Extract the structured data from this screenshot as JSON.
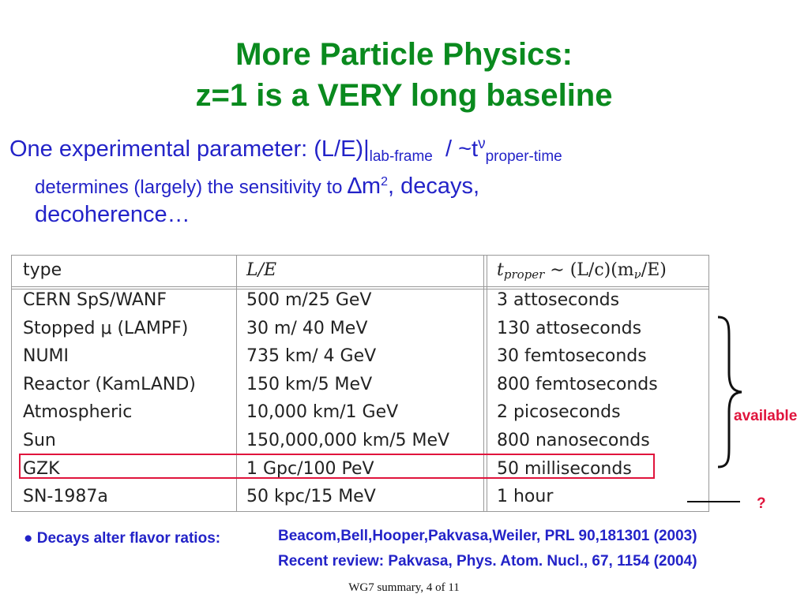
{
  "title": {
    "line1": "More Particle Physics:",
    "line2": "z=1 is a VERY long baseline"
  },
  "param": {
    "lead": "One experimental parameter: (L/E)|",
    "sub_lab": "lab-frame",
    "slash": "/ ~t",
    "sup_nu": "ν",
    "sub_proper": "proper-time",
    "line2_a": "determines (largely) the sensitivity to ",
    "delta": "∆",
    "m": "m",
    "sup2": "2",
    "line2_b": ", decays,",
    "line3": "decoherence…"
  },
  "table": {
    "headers": {
      "type": "type",
      "le": "L/E",
      "t_prefix": "t",
      "t_sub": "proper",
      "t_rest": " ∼ (L/c)(m",
      "t_nu": "ν",
      "t_end": "/E)"
    },
    "rows": [
      {
        "type": "CERN SpS/WANF",
        "le": "500 m/25 GeV",
        "t": "3 attoseconds"
      },
      {
        "type": "Stopped μ (LAMPF)",
        "le": "30 m/ 40 MeV",
        "t": "130 attoseconds"
      },
      {
        "type": "NUMI",
        "le": "735 km/ 4 GeV",
        "t": "30 femtoseconds"
      },
      {
        "type": "Reactor (KamLAND)",
        "le": "150 km/5 MeV",
        "t": "800 femtoseconds"
      },
      {
        "type": "Atmospheric",
        "le": "10,000 km/1 GeV",
        "t": "2 picoseconds"
      },
      {
        "type": "Sun",
        "le": "150,000,000 km/5 MeV",
        "t": "800 nanoseconds"
      },
      {
        "type": "GZK",
        "le": "1 Gpc/100 PeV",
        "t": "50 milliseconds"
      },
      {
        "type": "SN-1987a",
        "le": "50 kpc/15 MeV",
        "t": "1 hour"
      }
    ],
    "highlight_row": "GZK"
  },
  "side": {
    "available": "available",
    "question": "?"
  },
  "decays_label": "● Decays alter flavor ratios:",
  "refs": {
    "ref1": "Beacom,Bell,Hooper,Pakvasa,Weiler, PRL 90,181301 (2003)",
    "ref2": "Recent review:  Pakvasa, Phys. Atom. Nucl., 67, 1154 (2004)"
  },
  "footer": "WG7 summary, 4 of 11",
  "colors": {
    "title": "#0a8a1e",
    "text_blue": "#2323c8",
    "highlight_red": "#e0143c"
  }
}
